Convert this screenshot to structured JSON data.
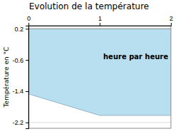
{
  "chart_data": {
    "type": "area",
    "title": "Evolution de la température",
    "y_label": "Température en °C",
    "x": [
      0,
      1,
      2
    ],
    "values": [
      -1.47,
      -2.02,
      -2.02
    ],
    "area_top": 0.2,
    "color": "#b8dff0",
    "xlim": [
      0,
      2
    ],
    "ylim": [
      -2.35,
      0.28
    ],
    "xticks": [
      0,
      1,
      2
    ],
    "yticks": [
      0.2,
      -0.6,
      -1.4,
      -2.2
    ],
    "grid": true,
    "annotations": [
      {
        "text": "heure par heure",
        "x": 1.05,
        "y": -0.52
      }
    ]
  }
}
